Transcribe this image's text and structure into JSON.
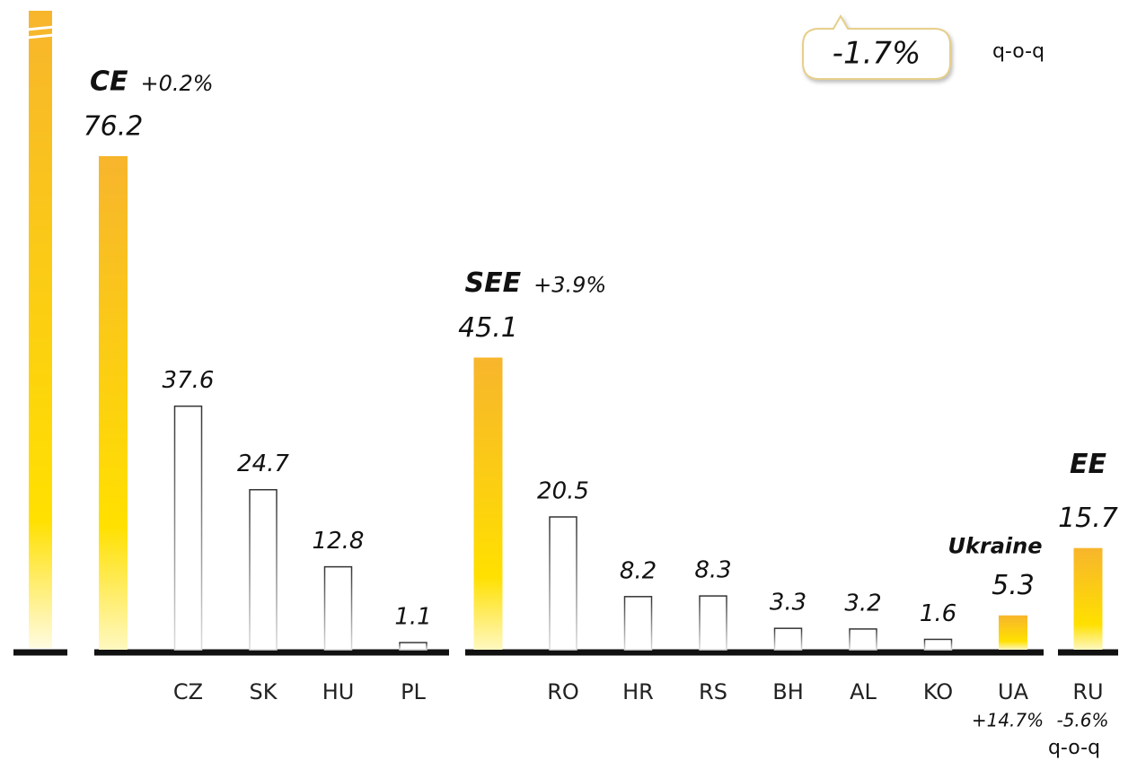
{
  "chart_data": {
    "type": "bar",
    "categories": [
      null,
      "CZ",
      "SK",
      "HU",
      "PL",
      null,
      "RO",
      "HR",
      "RS",
      "BH",
      "AL",
      "KO",
      "UA",
      "RU"
    ],
    "values": [
      76.2,
      37.6,
      24.7,
      12.8,
      1.1,
      45.1,
      20.5,
      8.2,
      8.3,
      3.3,
      3.2,
      1.6,
      5.3,
      15.7
    ],
    "bar_styles": [
      "filled",
      "outline",
      "outline",
      "outline",
      "outline",
      "filled",
      "outline",
      "outline",
      "outline",
      "outline",
      "outline",
      "outline",
      "filled",
      "filled"
    ],
    "group_names": [
      "CE",
      null,
      null,
      null,
      null,
      "SEE",
      null,
      null,
      null,
      null,
      null,
      null,
      "Ukraine",
      "EE"
    ],
    "group_changes": [
      "+0.2%",
      null,
      null,
      null,
      null,
      "+3.9%",
      null,
      null,
      null,
      null,
      null,
      null,
      "+14.7%",
      "-5.6%"
    ],
    "total_change": "-1.7%",
    "total_change_unit": "q-o-q",
    "footnote": "q-o-q"
  }
}
